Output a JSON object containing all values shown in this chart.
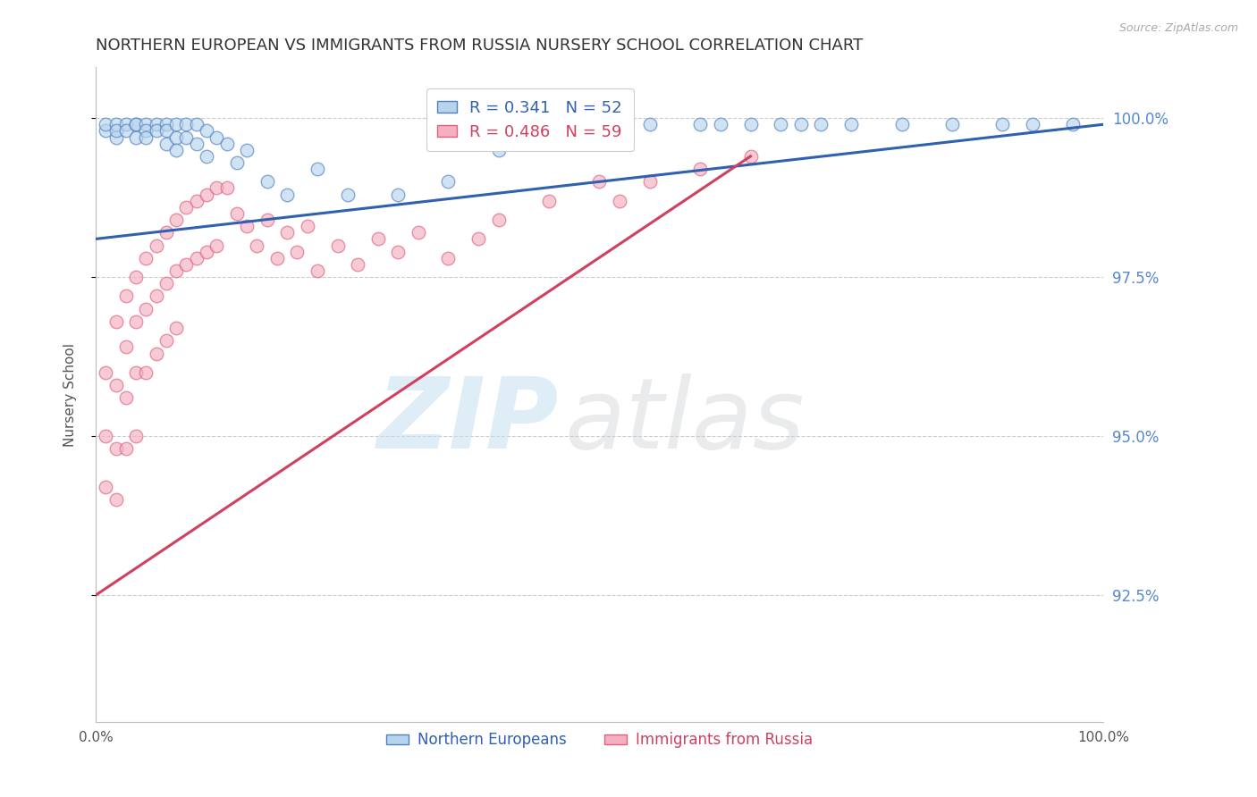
{
  "title": "NORTHERN EUROPEAN VS IMMIGRANTS FROM RUSSIA NURSERY SCHOOL CORRELATION CHART",
  "source": "Source: ZipAtlas.com",
  "ylabel": "Nursery School",
  "xlim": [
    0.0,
    1.0
  ],
  "ylim": [
    0.905,
    1.008
  ],
  "yticks": [
    0.925,
    0.95,
    0.975,
    1.0
  ],
  "ytick_labels": [
    "92.5%",
    "95.0%",
    "97.5%",
    "100.0%"
  ],
  "blue_R": 0.341,
  "blue_N": 52,
  "pink_R": 0.486,
  "pink_N": 59,
  "blue_color": "#b8d4ec",
  "pink_color": "#f4b0c0",
  "blue_edge_color": "#5080c0",
  "pink_edge_color": "#e06080",
  "blue_line_color": "#3060b0",
  "pink_line_color": "#d04060",
  "legend_blue_label": "Northern Europeans",
  "legend_pink_label": "Immigrants from Russia",
  "blue_x": [
    0.01,
    0.01,
    0.02,
    0.02,
    0.02,
    0.03,
    0.03,
    0.04,
    0.04,
    0.04,
    0.05,
    0.05,
    0.05,
    0.06,
    0.06,
    0.07,
    0.07,
    0.07,
    0.08,
    0.08,
    0.08,
    0.09,
    0.09,
    0.1,
    0.1,
    0.11,
    0.11,
    0.12,
    0.13,
    0.14,
    0.15,
    0.17,
    0.19,
    0.22,
    0.25,
    0.3,
    0.35,
    0.4,
    0.5,
    0.55,
    0.6,
    0.62,
    0.65,
    0.68,
    0.7,
    0.72,
    0.75,
    0.8,
    0.85,
    0.9,
    0.93,
    0.97
  ],
  "blue_y": [
    0.998,
    0.999,
    0.997,
    0.999,
    0.998,
    0.999,
    0.998,
    0.999,
    0.997,
    0.999,
    0.999,
    0.998,
    0.997,
    0.999,
    0.998,
    0.999,
    0.998,
    0.996,
    0.999,
    0.997,
    0.995,
    0.999,
    0.997,
    0.999,
    0.996,
    0.998,
    0.994,
    0.997,
    0.996,
    0.993,
    0.995,
    0.99,
    0.988,
    0.992,
    0.988,
    0.988,
    0.99,
    0.995,
    0.999,
    0.999,
    0.999,
    0.999,
    0.999,
    0.999,
    0.999,
    0.999,
    0.999,
    0.999,
    0.999,
    0.999,
    0.999,
    0.999
  ],
  "pink_x": [
    0.01,
    0.01,
    0.01,
    0.02,
    0.02,
    0.02,
    0.02,
    0.03,
    0.03,
    0.03,
    0.03,
    0.04,
    0.04,
    0.04,
    0.04,
    0.05,
    0.05,
    0.05,
    0.06,
    0.06,
    0.06,
    0.07,
    0.07,
    0.07,
    0.08,
    0.08,
    0.08,
    0.09,
    0.09,
    0.1,
    0.1,
    0.11,
    0.11,
    0.12,
    0.12,
    0.13,
    0.14,
    0.15,
    0.16,
    0.17,
    0.18,
    0.19,
    0.2,
    0.21,
    0.22,
    0.24,
    0.26,
    0.28,
    0.3,
    0.32,
    0.35,
    0.38,
    0.4,
    0.45,
    0.5,
    0.52,
    0.55,
    0.6,
    0.65
  ],
  "pink_y": [
    0.96,
    0.95,
    0.942,
    0.968,
    0.958,
    0.948,
    0.94,
    0.972,
    0.964,
    0.956,
    0.948,
    0.975,
    0.968,
    0.96,
    0.95,
    0.978,
    0.97,
    0.96,
    0.98,
    0.972,
    0.963,
    0.982,
    0.974,
    0.965,
    0.984,
    0.976,
    0.967,
    0.986,
    0.977,
    0.987,
    0.978,
    0.988,
    0.979,
    0.989,
    0.98,
    0.989,
    0.985,
    0.983,
    0.98,
    0.984,
    0.978,
    0.982,
    0.979,
    0.983,
    0.976,
    0.98,
    0.977,
    0.981,
    0.979,
    0.982,
    0.978,
    0.981,
    0.984,
    0.987,
    0.99,
    0.987,
    0.99,
    0.992,
    0.994
  ],
  "blue_trend_x": [
    0.0,
    1.0
  ],
  "blue_trend_y": [
    0.981,
    0.999
  ],
  "pink_trend_x": [
    0.0,
    0.65
  ],
  "pink_trend_y": [
    0.925,
    0.994
  ]
}
